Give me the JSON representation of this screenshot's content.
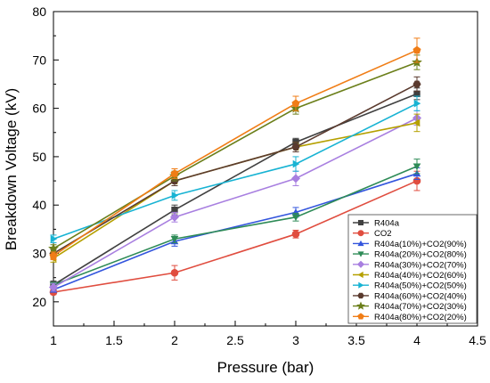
{
  "chart_data": {
    "type": "line",
    "xlabel": "Pressure (bar)",
    "ylabel": "Breakdown Voltage (kV)",
    "xlim": [
      1,
      4.5
    ],
    "ylim": [
      15,
      80
    ],
    "xticks": [
      1,
      1.5,
      2,
      2.5,
      3,
      3.5,
      4,
      4.5
    ],
    "yticks": [
      20,
      30,
      40,
      50,
      60,
      70,
      80
    ],
    "xtick_labels": [
      "1",
      "1.5",
      "2",
      "2.5",
      "3",
      "3.5",
      "4",
      "4.5"
    ],
    "ytick_labels": [
      "20",
      "30",
      "40",
      "50",
      "60",
      "70",
      "80"
    ],
    "x": [
      1,
      2,
      3,
      4
    ],
    "legend_position": "bottom-right",
    "error_bars": true,
    "series": [
      {
        "name": "R404a",
        "values": [
          23.5,
          39,
          53,
          63
        ],
        "errors": [
          0.8,
          1.0,
          0.8,
          1.2
        ],
        "color": "#404040",
        "marker": "square"
      },
      {
        "name": "CO2",
        "values": [
          22,
          26,
          34,
          45
        ],
        "errors": [
          0.5,
          1.5,
          0.8,
          2.0
        ],
        "color": "#e04d3f",
        "marker": "circle"
      },
      {
        "name": "R404a(10%)+CO2(90%)",
        "values": [
          22.5,
          32.5,
          38.5,
          46.5
        ],
        "errors": [
          0.5,
          1.0,
          1.0,
          1.2
        ],
        "color": "#3355dd",
        "marker": "triangle-up"
      },
      {
        "name": "R404a(20%)+CO2(80%)",
        "values": [
          23.5,
          33,
          37.5,
          48
        ],
        "errors": [
          0.5,
          0.8,
          0.8,
          1.5
        ],
        "color": "#2e8b57",
        "marker": "triangle-down"
      },
      {
        "name": "R404a(30%)+CO2(70%)",
        "values": [
          23,
          37.5,
          45.5,
          58
        ],
        "errors": [
          0.8,
          1.0,
          1.5,
          1.5
        ],
        "color": "#a87fe0",
        "marker": "diamond"
      },
      {
        "name": "R404a(40%)+CO2(60%)",
        "values": [
          29,
          45,
          52,
          57
        ],
        "errors": [
          0.8,
          1.0,
          1.0,
          1.8
        ],
        "color": "#b5a000",
        "marker": "triangle-left"
      },
      {
        "name": "R404a(50%)+CO2(50%)",
        "values": [
          33,
          42,
          48.5,
          61
        ],
        "errors": [
          0.8,
          1.0,
          1.5,
          1.5
        ],
        "color": "#17b3d3",
        "marker": "triangle-right"
      },
      {
        "name": "R404a(60%)+CO2(40%)",
        "values": [
          30,
          45,
          52,
          65
        ],
        "errors": [
          0.8,
          1.0,
          1.0,
          1.5
        ],
        "color": "#5a3a2e",
        "marker": "hexagon"
      },
      {
        "name": "R404a(70%)+CO2(30%)",
        "values": [
          31,
          46,
          60,
          69.5
        ],
        "errors": [
          0.8,
          1.0,
          1.2,
          1.5
        ],
        "color": "#6b7f1a",
        "marker": "star"
      },
      {
        "name": "R404a(80%)+CO2(20%)",
        "values": [
          29.5,
          46.5,
          61,
          72
        ],
        "errors": [
          0.8,
          1.0,
          1.5,
          2.5
        ],
        "color": "#f07d16",
        "marker": "pentagon"
      }
    ]
  }
}
